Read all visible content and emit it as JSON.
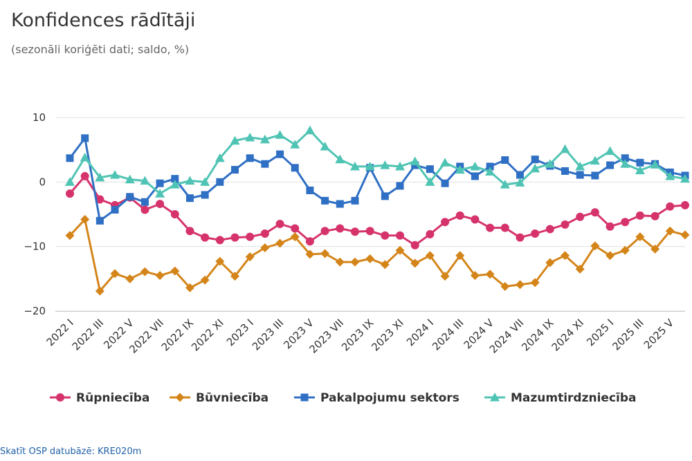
{
  "header": {
    "title": "Konfidences rādītāji",
    "subtitle": "(sezonāli koriģēti dati; saldo, %)"
  },
  "footer": {
    "source_link": "Skatīt OSP datubāzē: KRE020m"
  },
  "chart_data": {
    "type": "line",
    "title": "Konfidences rādītāji",
    "subtitle": "(sezonāli koriģēti dati; saldo, %)",
    "xlabel": "",
    "ylabel": "",
    "ylim": [
      -20,
      10
    ],
    "yticks": [
      10,
      0,
      -10,
      -20
    ],
    "ytick_labels": [
      "10",
      "0",
      "−10",
      "−20"
    ],
    "grid": true,
    "legend_position": "bottom",
    "x": [
      "2022 I",
      "2022 II",
      "2022 III",
      "2022 IV",
      "2022 V",
      "2022 VI",
      "2022 VII",
      "2022 VIII",
      "2022 IX",
      "2022 X",
      "2022 XI",
      "2022 XII",
      "2023 I",
      "2023 II",
      "2023 III",
      "2023 IV",
      "2023 V",
      "2023 VI",
      "2023 VII",
      "2023 VIII",
      "2023 IX",
      "2023 X",
      "2023 XI",
      "2023 XII",
      "2024 I",
      "2024 II",
      "2024 III",
      "2024 IV",
      "2024 V",
      "2024 VI",
      "2024 VII",
      "2024 VIII",
      "2024 IX",
      "2024 X",
      "2024 XI",
      "2024 XII",
      "2025 I",
      "2025 II",
      "2025 III",
      "2025 IV",
      "2025 V",
      "2025 VI"
    ],
    "x_tick_labels": [
      "2022 I",
      "2022 III",
      "2022 V",
      "2022 VII",
      "2022 IX",
      "2022 XI",
      "2023 I",
      "2023 III",
      "2023 V",
      "2023 VII",
      "2023 IX",
      "2023 XI",
      "2024 I",
      "2024 III",
      "2024 V",
      "2024 VII",
      "2024 IX",
      "2024 XI",
      "2025 I",
      "2025 III",
      "2025 V"
    ],
    "series": [
      {
        "name": "Rūpniecība",
        "color": "#d6336c",
        "marker": "circle",
        "values": [
          -1.8,
          0.9,
          -2.7,
          -3.6,
          -2.4,
          -4.3,
          -3.4,
          -5.0,
          -7.6,
          -8.6,
          -9.0,
          -8.6,
          -8.5,
          -8.0,
          -6.5,
          -7.2,
          -9.2,
          -7.6,
          -7.2,
          -7.7,
          -7.6,
          -8.3,
          -8.3,
          -9.8,
          -8.1,
          -6.2,
          -5.2,
          -5.8,
          -7.1,
          -7.1,
          -8.6,
          -8.0,
          -7.3,
          -6.6,
          -5.4,
          -4.7,
          -6.9,
          -6.2,
          -5.2,
          -5.3,
          -3.8,
          -3.6
        ]
      },
      {
        "name": "Būvniecība",
        "color": "#d4851a",
        "marker": "diamond",
        "values": [
          -8.3,
          -5.8,
          -16.9,
          -14.2,
          -15.0,
          -13.9,
          -14.5,
          -13.8,
          -16.4,
          -15.2,
          -12.3,
          -14.6,
          -11.6,
          -10.2,
          -9.5,
          -8.5,
          -11.2,
          -11.1,
          -12.4,
          -12.4,
          -11.9,
          -12.8,
          -10.6,
          -12.6,
          -11.4,
          -14.6,
          -11.4,
          -14.5,
          -14.3,
          -16.2,
          -15.9,
          -15.6,
          -12.5,
          -11.4,
          -13.5,
          -9.9,
          -11.4,
          -10.6,
          -8.5,
          -10.4,
          -7.6,
          -8.2
        ]
      },
      {
        "name": "Pakalpojumu sektors",
        "color": "#2f6fc4",
        "marker": "square",
        "values": [
          3.7,
          6.8,
          -6.0,
          -4.3,
          -2.3,
          -3.1,
          -0.2,
          0.5,
          -2.5,
          -2.0,
          0.0,
          1.9,
          3.7,
          2.8,
          4.3,
          2.2,
          -1.3,
          -2.9,
          -3.4,
          -2.9,
          2.2,
          -2.2,
          -0.6,
          2.6,
          2.0,
          -0.2,
          2.4,
          0.9,
          2.4,
          3.4,
          1.1,
          3.5,
          2.5,
          1.7,
          1.1,
          1.0,
          2.6,
          3.7,
          3.0,
          2.8,
          1.5,
          1.0
        ]
      },
      {
        "name": "Mazumtirdzniecība",
        "color": "#4fc4b4",
        "marker": "triangle",
        "values": [
          0.0,
          3.8,
          0.7,
          1.1,
          0.4,
          0.2,
          -1.8,
          -0.4,
          0.2,
          0.0,
          3.7,
          6.4,
          6.9,
          6.6,
          7.3,
          5.8,
          8.0,
          5.5,
          3.5,
          2.4,
          2.4,
          2.6,
          2.4,
          3.2,
          0.0,
          3.0,
          1.9,
          2.4,
          1.6,
          -0.4,
          -0.1,
          2.1,
          2.8,
          5.1,
          2.4,
          3.3,
          4.8,
          2.8,
          1.8,
          2.7,
          0.9,
          0.5
        ]
      }
    ]
  }
}
